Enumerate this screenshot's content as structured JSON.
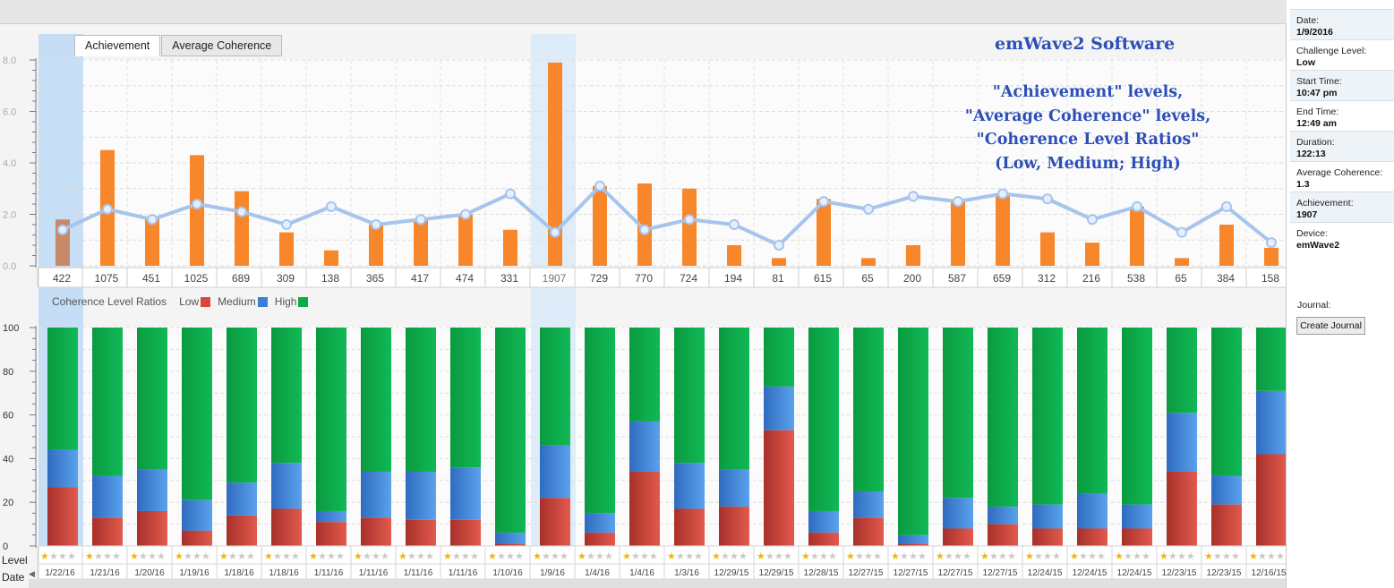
{
  "tabs": [
    "Achievement",
    "Average Coherence"
  ],
  "brand": "emWave2 Software",
  "annotation": [
    "\"Achievement\" levels,",
    "\"Average Coherence\" levels,",
    "\"Coherence Level Ratios\"",
    "(Low, Medium; High)"
  ],
  "legend": {
    "title": "Coherence Level Ratios",
    "items": [
      {
        "label": "Low",
        "color": "#d9463b"
      },
      {
        "label": "Medium",
        "color": "#3d7fd6"
      },
      {
        "label": "High",
        "color": "#0aab48"
      }
    ]
  },
  "row_labels": {
    "level": "Level",
    "date": "Date"
  },
  "sidebar": {
    "fields": [
      {
        "label": "Date:",
        "value": "1/9/2016"
      },
      {
        "label": "Challenge Level:",
        "value": "Low"
      },
      {
        "label": "Start Time:",
        "value": "10:47 pm"
      },
      {
        "label": "End Time:",
        "value": "12:49 am"
      },
      {
        "label": "Duration:",
        "value": "122:13"
      },
      {
        "label": "Average Coherence:",
        "value": "1.3"
      },
      {
        "label": "Achievement:",
        "value": "1907"
      },
      {
        "label": "Device:",
        "value": "emWave2"
      }
    ],
    "journal_label": "Journal:",
    "journal_button": "Create Journal"
  },
  "colors": {
    "bar": "#f8862a",
    "bar_first": "#c88968",
    "line": "#a6c4ec",
    "low": "#d9463b",
    "medium": "#3d7fd6",
    "high": "#0aab48",
    "highlight": "#bcd8f4",
    "accent_text": "#2d4fb8"
  },
  "chart_data": [
    {
      "type": "bar",
      "title": "",
      "ylim": [
        0,
        8
      ],
      "yticks": [
        "0.0",
        "2.0",
        "4.0",
        "6.0",
        "8.0"
      ],
      "categories": [
        "422",
        "1075",
        "451",
        "1025",
        "689",
        "309",
        "138",
        "365",
        "417",
        "474",
        "331",
        "1907",
        "729",
        "770",
        "724",
        "194",
        "81",
        "615",
        "65",
        "200",
        "587",
        "659",
        "312",
        "216",
        "538",
        "65",
        "384",
        "158"
      ],
      "series": [
        {
          "name": "Achievement",
          "type": "bar",
          "values": [
            1.8,
            4.5,
            1.9,
            4.3,
            2.9,
            1.3,
            0.6,
            1.6,
            1.8,
            2.0,
            1.4,
            7.9,
            3.1,
            3.2,
            3.0,
            0.8,
            0.3,
            2.6,
            0.3,
            0.8,
            2.5,
            2.8,
            1.3,
            0.9,
            2.3,
            0.3,
            1.6,
            0.7
          ]
        },
        {
          "name": "Average Coherence",
          "type": "line",
          "values": [
            1.4,
            2.2,
            1.8,
            2.4,
            2.1,
            1.6,
            2.3,
            1.6,
            1.8,
            2.0,
            2.8,
            1.3,
            3.1,
            1.4,
            1.8,
            1.6,
            0.8,
            2.5,
            2.2,
            2.7,
            2.5,
            2.8,
            2.6,
            1.8,
            2.3,
            1.3,
            2.3,
            0.9
          ]
        }
      ],
      "selected_index": 11,
      "grid": true
    },
    {
      "type": "bar",
      "stacked": true,
      "ylim": [
        0,
        100
      ],
      "yticks": [
        "0",
        "20",
        "40",
        "60",
        "80",
        "100"
      ],
      "categories": [
        "1/22/16",
        "1/21/16",
        "1/20/16",
        "1/19/16",
        "1/18/16",
        "1/18/16",
        "1/11/16",
        "1/11/16",
        "1/11/16",
        "1/11/16",
        "1/10/16",
        "1/9/16",
        "1/4/16",
        "1/4/16",
        "1/3/16",
        "12/29/15",
        "12/29/15",
        "12/28/15",
        "12/27/15",
        "12/27/15",
        "12/27/15",
        "12/27/15",
        "12/24/15",
        "12/24/15",
        "12/24/15",
        "12/23/15",
        "12/23/15",
        "12/16/15"
      ],
      "series": [
        {
          "name": "Low",
          "values": [
            27,
            13,
            16,
            7,
            14,
            17,
            11,
            13,
            12,
            12,
            1,
            22,
            6,
            34,
            17,
            18,
            53,
            6,
            13,
            1,
            8,
            10,
            8,
            8,
            8,
            34,
            19,
            42
          ]
        },
        {
          "name": "Medium",
          "values": [
            17,
            19,
            19,
            14,
            15,
            21,
            5,
            21,
            22,
            24,
            5,
            24,
            9,
            23,
            21,
            17,
            20,
            10,
            12,
            4,
            14,
            8,
            11,
            16,
            11,
            27,
            13,
            29
          ]
        },
        {
          "name": "High",
          "values": [
            56,
            68,
            65,
            79,
            71,
            62,
            84,
            66,
            66,
            64,
            94,
            54,
            85,
            43,
            62,
            65,
            27,
            84,
            75,
            95,
            78,
            82,
            81,
            76,
            81,
            39,
            68,
            29
          ]
        }
      ],
      "level_stars": [
        1,
        1,
        1,
        1,
        1,
        1,
        1,
        1,
        1,
        1,
        1,
        1,
        1,
        1,
        1,
        1,
        1,
        1,
        1,
        1,
        1,
        1,
        1,
        1,
        1,
        1,
        1,
        1
      ],
      "grid": true
    }
  ]
}
